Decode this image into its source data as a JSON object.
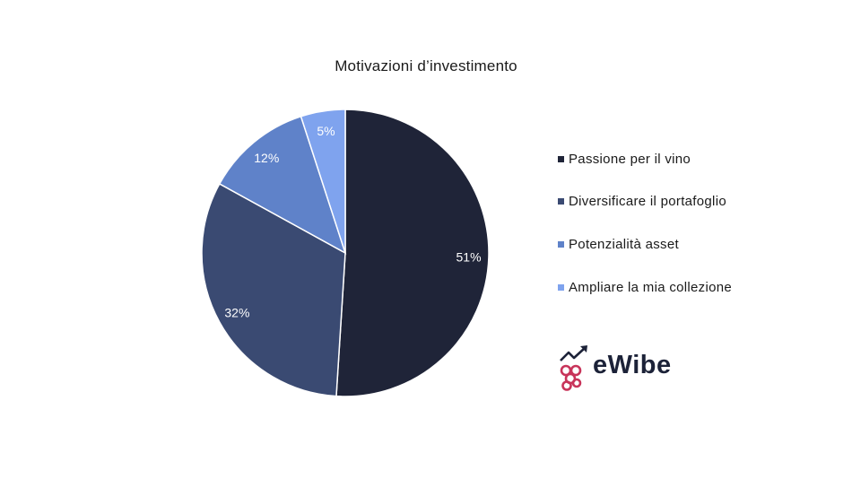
{
  "chart_data": {
    "type": "pie",
    "title": "Motivazioni d’investimento",
    "slices": [
      {
        "label": "Passione per il vino",
        "value": 51,
        "display": "51%",
        "color": "#1f2438"
      },
      {
        "label": "Diversificare il portafoglio",
        "value": 32,
        "display": "32%",
        "color": "#3a4a72"
      },
      {
        "label": "Potenzialità asset",
        "value": 12,
        "display": "12%",
        "color": "#5f82c9"
      },
      {
        "label": "Ampliare la mia collezione",
        "value": 5,
        "display": "5%",
        "color": "#7fa3ee"
      }
    ],
    "legend_position": "right"
  },
  "logo": {
    "text": "eWibe",
    "icon": "grape-chart-icon",
    "icon_color": "#c8345a",
    "text_color": "#1c2238"
  }
}
